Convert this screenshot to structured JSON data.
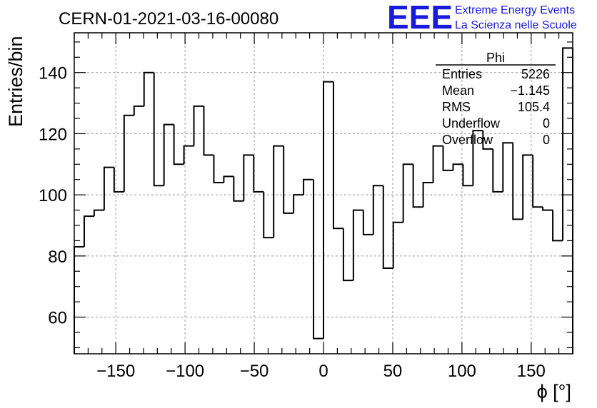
{
  "header": {
    "run_title": "CERN-01-2021-03-16-00080",
    "logo_text": "EEE",
    "brand_line1": "Extreme Energy Events",
    "brand_line2": "La Scienza nelle Scuole",
    "logo_color": "#1a1adc"
  },
  "stats": {
    "name": "Phi",
    "rows": [
      {
        "label": "Entries",
        "value": "5226"
      },
      {
        "label": "Mean",
        "value": "−1.145"
      },
      {
        "label": "RMS",
        "value": "105.4"
      },
      {
        "label": "Underflow",
        "value": "0"
      },
      {
        "label": "Overflow",
        "value": "0"
      }
    ]
  },
  "chart_data": {
    "type": "histogram",
    "title": "CERN-01-2021-03-16-00080",
    "xlabel": "ϕ [°]",
    "ylabel": "Entries/bin",
    "xlim": [
      -180,
      180
    ],
    "ylim": [
      48,
      153
    ],
    "bin_width": 7.2,
    "x_ticks": [
      -150,
      -100,
      -50,
      0,
      50,
      100,
      150
    ],
    "x_tick_labels": [
      "−150",
      "−100",
      "−50",
      "0",
      "50",
      "100",
      "150"
    ],
    "y_ticks": [
      60,
      80,
      100,
      120,
      140
    ],
    "y_tick_labels": [
      "60",
      "80",
      "100",
      "120",
      "140"
    ],
    "grid": true,
    "legend": "top-right",
    "values": [
      83,
      93,
      95,
      109,
      101,
      126,
      129,
      140,
      103,
      123,
      110,
      116,
      129,
      113,
      104,
      106,
      98,
      113,
      101,
      86,
      116,
      94,
      100,
      105,
      53,
      137,
      89,
      72,
      95,
      87,
      103,
      76,
      91,
      110,
      96,
      104,
      116,
      108,
      110,
      103,
      121,
      115,
      101,
      117,
      92,
      113,
      96,
      95,
      85,
      148
    ]
  }
}
